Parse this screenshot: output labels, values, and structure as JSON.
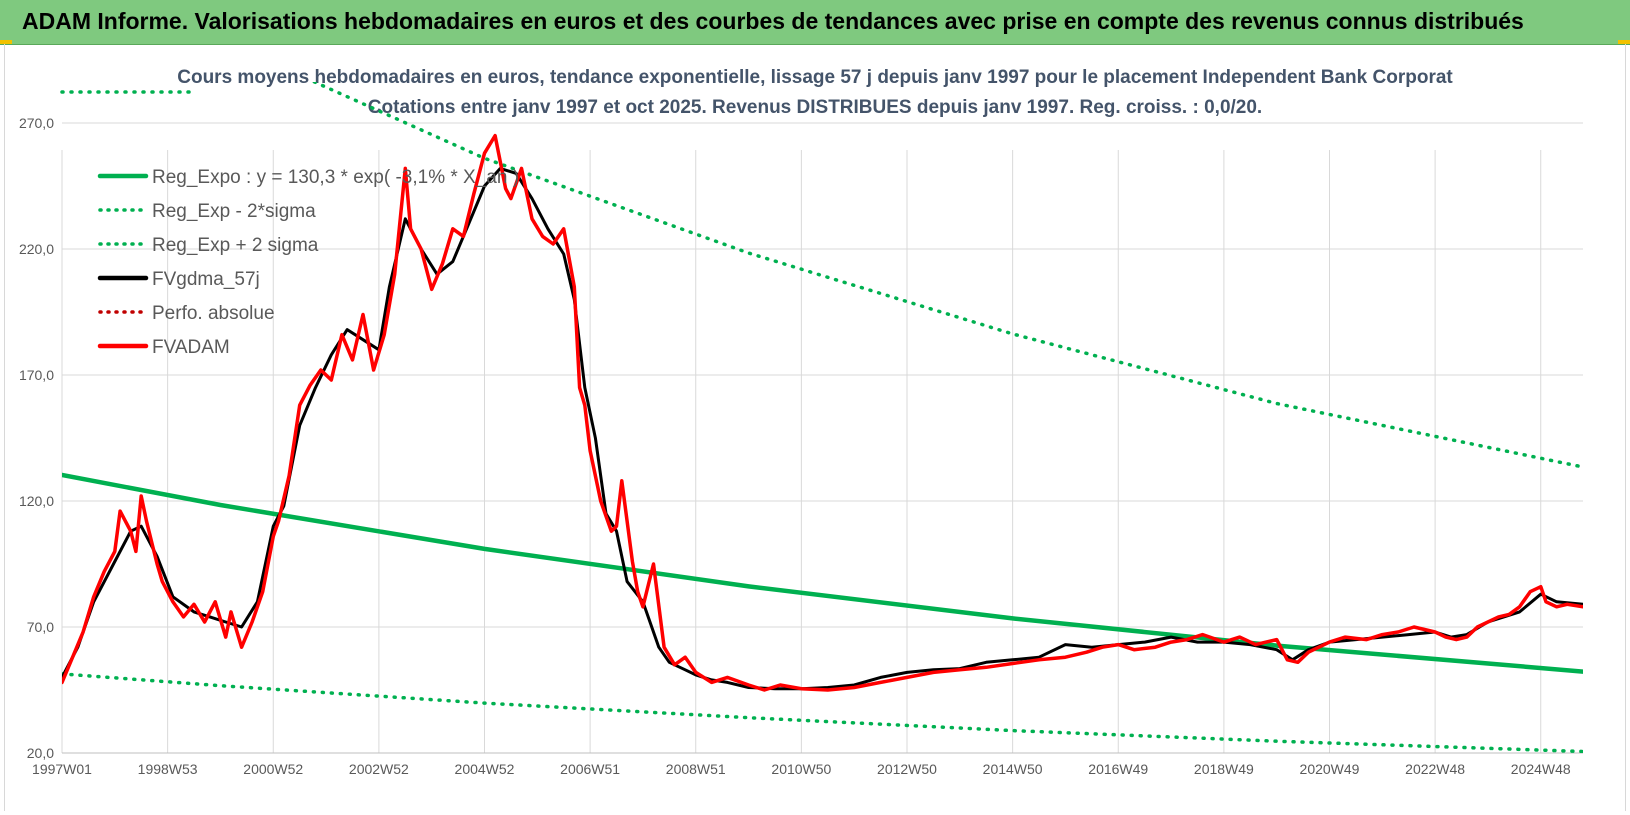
{
  "banner": {
    "title": "ADAM Informe. Valorisations hebdomadaires en euros et des courbes de tendances avec prise en compte des revenus connus distribués"
  },
  "colors": {
    "banner": "#7fc97f",
    "reg_expo": "#00b050",
    "fvgdma": "#000000",
    "fvadam": "#ff0000",
    "subtitle": "#44546a"
  },
  "chart_data": {
    "type": "line",
    "title": "Cours moyens hebdomadaires en euros, tendance exponentielle, lissage 57 j depuis janv 1997 pour le placement Independent Bank Corporat",
    "subtitle": "Cotations entre janv 1997 et oct 2025. Revenus DISTRIBUES depuis janv 1997. Reg. croiss. : 0,0/20.",
    "xlabel": "",
    "ylabel": "",
    "x_range": [
      1997.0,
      2025.8
    ],
    "ylim": [
      20,
      295
    ],
    "y_ticks": [
      "20,0",
      "70,0",
      "120,0",
      "170,0",
      "220,0",
      "270,0"
    ],
    "y_tick_values": [
      20,
      70,
      120,
      170,
      220,
      270
    ],
    "x_ticks": [
      {
        "label": "1997W01",
        "x": 1997.0
      },
      {
        "label": "1998W53",
        "x": 1999.0
      },
      {
        "label": "2000W52",
        "x": 2001.0
      },
      {
        "label": "2002W52",
        "x": 2003.0
      },
      {
        "label": "2004W52",
        "x": 2005.0
      },
      {
        "label": "2006W51",
        "x": 2007.0
      },
      {
        "label": "2008W51",
        "x": 2009.0
      },
      {
        "label": "2010W50",
        "x": 2011.0
      },
      {
        "label": "2012W50",
        "x": 2013.0
      },
      {
        "label": "2014W50",
        "x": 2015.0
      },
      {
        "label": "2016W49",
        "x": 2017.0
      },
      {
        "label": "2018W49",
        "x": 2019.0
      },
      {
        "label": "2020W49",
        "x": 2021.0
      },
      {
        "label": "2022W48",
        "x": 2023.0
      },
      {
        "label": "2024W48",
        "x": 2025.0
      }
    ],
    "grid": true,
    "legend_position": "top-left",
    "legend": [
      {
        "label": "Reg_Expo : y = 130,3 * exp( -3,1% *  X_an )",
        "color": "#00b050",
        "style": "solid"
      },
      {
        "label": "Reg_Exp - 2*sigma",
        "color": "#00b050",
        "style": "dotted"
      },
      {
        "label": "Reg_Exp + 2 sigma",
        "color": "#00b050",
        "style": "dotted"
      },
      {
        "label": "FVgdma_57j",
        "color": "#000000",
        "style": "solid"
      },
      {
        "label": "Perfo. absolue",
        "color": "#c00000",
        "style": "dotted"
      },
      {
        "label": "FVADAM",
        "color": "#ff0000",
        "style": "solid"
      }
    ],
    "series": [
      {
        "name": "Reg_Expo : y = 130,3 * exp( -3,1% *  X_an )",
        "x": [
          1997.0,
          2000.0,
          2005.0,
          2010.0,
          2015.0,
          2020.0,
          2025.8
        ],
        "values": [
          130.3,
          118.4,
          101.0,
          86.1,
          73.4,
          62.6,
          52.3
        ]
      },
      {
        "name": "Reg_Exp - 2*sigma",
        "x": [
          1997.0,
          2000.0,
          2005.0,
          2010.0,
          2015.0,
          2020.0,
          2025.8
        ],
        "values": [
          51.4,
          46.7,
          39.8,
          34.0,
          28.9,
          24.7,
          20.6
        ]
      },
      {
        "name": "Reg_Exp + 2 sigma",
        "x": [
          2001.0,
          2005.0,
          2010.0,
          2015.0,
          2020.0,
          2025.8
        ],
        "values": [
          293.6,
          256.0,
          218.4,
          186.3,
          158.7,
          133.5
        ]
      },
      {
        "name": "FVgdma_57j",
        "x": [
          1997.0,
          1997.3,
          1997.6,
          1998.0,
          1998.3,
          1998.5,
          1998.8,
          1999.1,
          1999.5,
          1999.8,
          2000.1,
          2000.4,
          2000.7,
          2001.0,
          2001.2,
          2001.5,
          2001.8,
          2002.1,
          2002.4,
          2002.7,
          2003.0,
          2003.2,
          2003.5,
          2003.8,
          2004.1,
          2004.4,
          2004.7,
          2005.0,
          2005.3,
          2005.6,
          2005.9,
          2006.2,
          2006.5,
          2006.7,
          2006.9,
          2007.1,
          2007.3,
          2007.5,
          2007.7,
          2008.0,
          2008.3,
          2008.5,
          2008.8,
          2009.0,
          2009.3,
          2009.6,
          2010.0,
          2010.5,
          2011.0,
          2011.5,
          2012.0,
          2012.5,
          2013.0,
          2013.5,
          2014.0,
          2014.5,
          2015.0,
          2015.5,
          2016.0,
          2016.5,
          2017.0,
          2017.5,
          2018.0,
          2018.5,
          2019.0,
          2019.5,
          2020.0,
          2020.3,
          2020.6,
          2021.0,
          2021.5,
          2022.0,
          2022.5,
          2023.0,
          2023.3,
          2023.6,
          2024.0,
          2024.3,
          2024.6,
          2025.0,
          2025.3,
          2025.8
        ],
        "values": [
          50,
          62,
          80,
          96,
          108,
          110,
          98,
          82,
          76,
          74,
          72,
          70,
          80,
          110,
          118,
          150,
          165,
          178,
          188,
          184,
          180,
          205,
          232,
          220,
          210,
          215,
          230,
          245,
          252,
          250,
          240,
          228,
          218,
          200,
          165,
          145,
          115,
          108,
          88,
          80,
          62,
          56,
          53,
          51,
          49,
          48,
          46,
          45.5,
          45.5,
          46,
          47,
          50,
          52,
          53,
          53.5,
          56,
          57,
          58,
          63,
          62,
          63,
          64,
          66,
          64,
          64,
          63,
          61,
          57,
          61,
          64,
          65,
          66,
          67,
          68,
          66,
          67,
          72,
          74,
          76,
          83,
          80,
          79
        ]
      },
      {
        "name": "FVADAM",
        "x": [
          1997.0,
          1997.2,
          1997.4,
          1997.6,
          1997.8,
          1998.0,
          1998.1,
          1998.3,
          1998.4,
          1998.5,
          1998.6,
          1998.8,
          1998.9,
          1999.1,
          1999.3,
          1999.5,
          1999.7,
          1999.9,
          2000.1,
          2000.2,
          2000.4,
          2000.6,
          2000.8,
          2001.0,
          2001.1,
          2001.3,
          2001.5,
          2001.7,
          2001.9,
          2002.1,
          2002.3,
          2002.5,
          2002.7,
          2002.9,
          2003.1,
          2003.3,
          2003.5,
          2003.6,
          2003.8,
          2004.0,
          2004.2,
          2004.4,
          2004.6,
          2004.8,
          2005.0,
          2005.2,
          2005.4,
          2005.5,
          2005.7,
          2005.9,
          2006.1,
          2006.3,
          2006.5,
          2006.7,
          2006.8,
          2006.9,
          2007.0,
          2007.2,
          2007.4,
          2007.5,
          2007.6,
          2007.8,
          2007.9,
          2008.0,
          2008.2,
          2008.4,
          2008.6,
          2008.8,
          2009.0,
          2009.3,
          2009.6,
          2010.0,
          2010.3,
          2010.6,
          2011.0,
          2011.5,
          2012.0,
          2012.5,
          2013.0,
          2013.5,
          2014.0,
          2014.5,
          2015.0,
          2015.5,
          2016.0,
          2016.4,
          2016.7,
          2017.0,
          2017.3,
          2017.7,
          2018.0,
          2018.3,
          2018.6,
          2019.0,
          2019.3,
          2019.6,
          2020.0,
          2020.2,
          2020.4,
          2020.6,
          2020.8,
          2021.0,
          2021.3,
          2021.7,
          2022.0,
          2022.3,
          2022.6,
          2023.0,
          2023.2,
          2023.4,
          2023.6,
          2023.8,
          2024.0,
          2024.2,
          2024.4,
          2024.6,
          2024.8,
          2025.0,
          2025.1,
          2025.3,
          2025.5,
          2025.8
        ],
        "values": [
          48,
          58,
          68,
          82,
          92,
          100,
          116,
          108,
          100,
          122,
          112,
          95,
          88,
          80,
          74,
          79,
          72,
          80,
          66,
          76,
          62,
          72,
          84,
          106,
          112,
          130,
          158,
          166,
          172,
          168,
          186,
          176,
          194,
          172,
          186,
          210,
          252,
          228,
          220,
          204,
          214,
          228,
          225,
          242,
          258,
          265,
          244,
          240,
          252,
          232,
          225,
          222,
          228,
          205,
          165,
          158,
          140,
          120,
          108,
          110,
          128,
          96,
          84,
          78,
          95,
          62,
          55,
          58,
          52,
          48,
          50,
          47,
          45,
          47,
          45.5,
          45,
          46,
          48,
          50,
          52,
          53,
          54,
          55.5,
          57,
          58,
          60,
          62,
          63,
          61,
          62,
          64,
          65,
          67,
          64,
          66,
          63,
          65,
          57,
          56,
          60,
          62,
          64,
          66,
          65,
          67,
          68,
          70,
          68,
          66,
          65,
          66,
          70,
          72,
          74,
          75,
          78,
          84,
          86,
          80,
          78,
          79,
          78
        ]
      }
    ]
  }
}
